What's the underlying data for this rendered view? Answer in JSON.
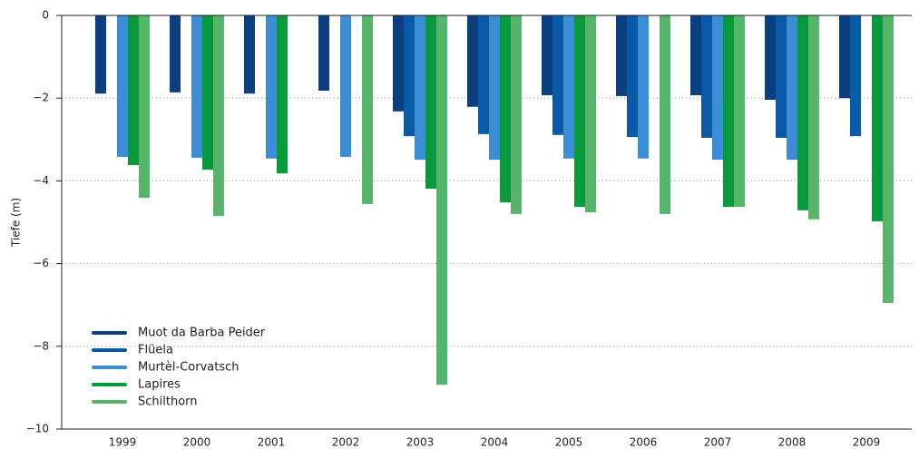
{
  "chart_data": {
    "type": "bar",
    "y_label": "Tiefe (m)",
    "categories": [
      "1999",
      "2000",
      "2001",
      "2002",
      "2003",
      "2004",
      "2005",
      "2006",
      "2007",
      "2008",
      "2009"
    ],
    "series": [
      {
        "name": "Muot da Barba Peider",
        "color": "#0b3f7f",
        "values": [
          -1.89,
          -1.86,
          -1.89,
          -1.82,
          -2.32,
          -2.21,
          -1.93,
          -1.95,
          -1.93,
          -2.04,
          -2.0
        ]
      },
      {
        "name": "Flüela",
        "color": "#0a5aa8",
        "values": [
          null,
          null,
          null,
          null,
          -2.92,
          -2.87,
          -2.89,
          -2.94,
          -2.96,
          -2.96,
          -2.92
        ]
      },
      {
        "name": "Murtèl-Corvatsch",
        "color": "#3b8ed3",
        "values": [
          -3.42,
          -3.44,
          -3.46,
          -3.42,
          -3.49,
          -3.49,
          -3.46,
          -3.46,
          -3.49,
          -3.49,
          null
        ]
      },
      {
        "name": "Lapires",
        "color": "#0a9a3e",
        "values": [
          -3.62,
          -3.73,
          -3.82,
          null,
          -4.19,
          -4.52,
          -4.63,
          null,
          -4.63,
          -4.71,
          -4.98
        ]
      },
      {
        "name": "Schilthorn",
        "color": "#56b56b",
        "values": [
          -4.41,
          -4.85,
          null,
          -4.56,
          -8.93,
          -4.8,
          -4.76,
          -4.8,
          -4.63,
          -4.93,
          -6.95
        ]
      }
    ],
    "ylim": [
      -10,
      0
    ],
    "yticks": [
      {
        "value": -10,
        "label": "−10"
      },
      {
        "value": -8,
        "label": "−8"
      },
      {
        "value": -6,
        "label": "−6"
      },
      {
        "value": -4,
        "label": "−4"
      },
      {
        "value": -2,
        "label": "−2"
      },
      0
    ],
    "grid": true,
    "legend": "lower-left"
  }
}
